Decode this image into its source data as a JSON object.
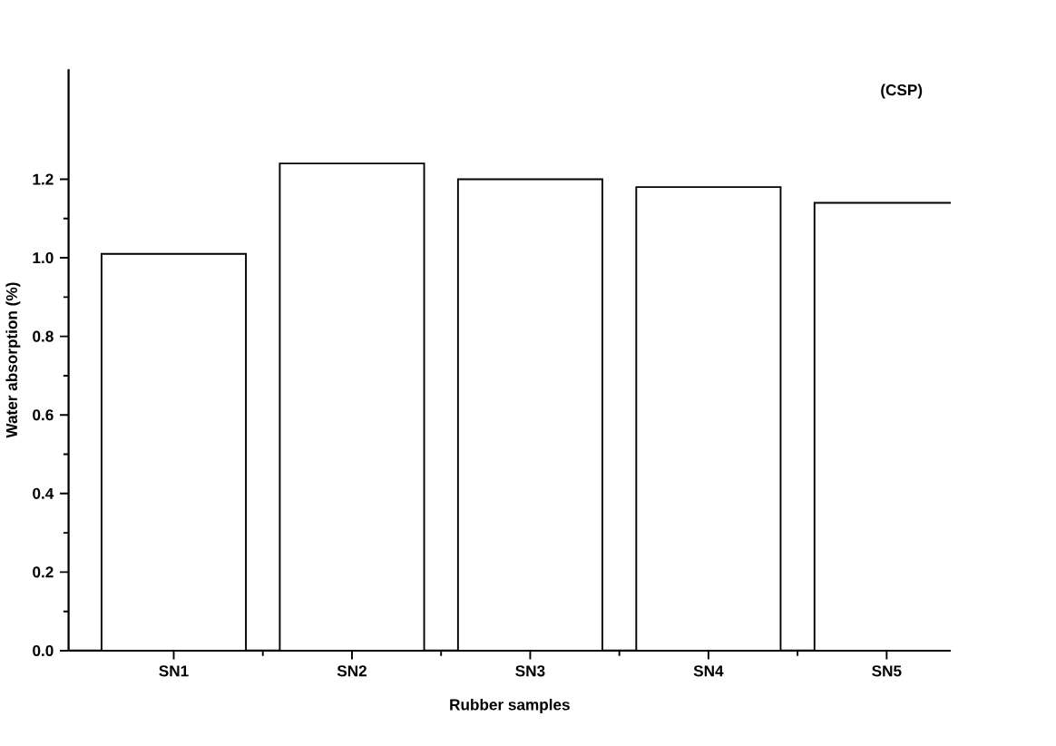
{
  "chart_data": {
    "type": "bar",
    "xlabel": "Rubber samples",
    "ylabel": "Water absorption (%)",
    "categories": [
      "SN1",
      "SN2",
      "SN3",
      "SN4",
      "SN5"
    ],
    "values": [
      1.01,
      1.24,
      1.2,
      1.18,
      1.14
    ],
    "color": "#ffffff",
    "ylim": [
      0,
      1.48
    ],
    "yticks": [
      {
        "value": 0,
        "label": "0.0"
      },
      0.2,
      0.4,
      0.6,
      0.8,
      {
        "value": 1,
        "label": "1.0"
      },
      1.2
    ],
    "annotations": [
      "(CSP)"
    ]
  }
}
